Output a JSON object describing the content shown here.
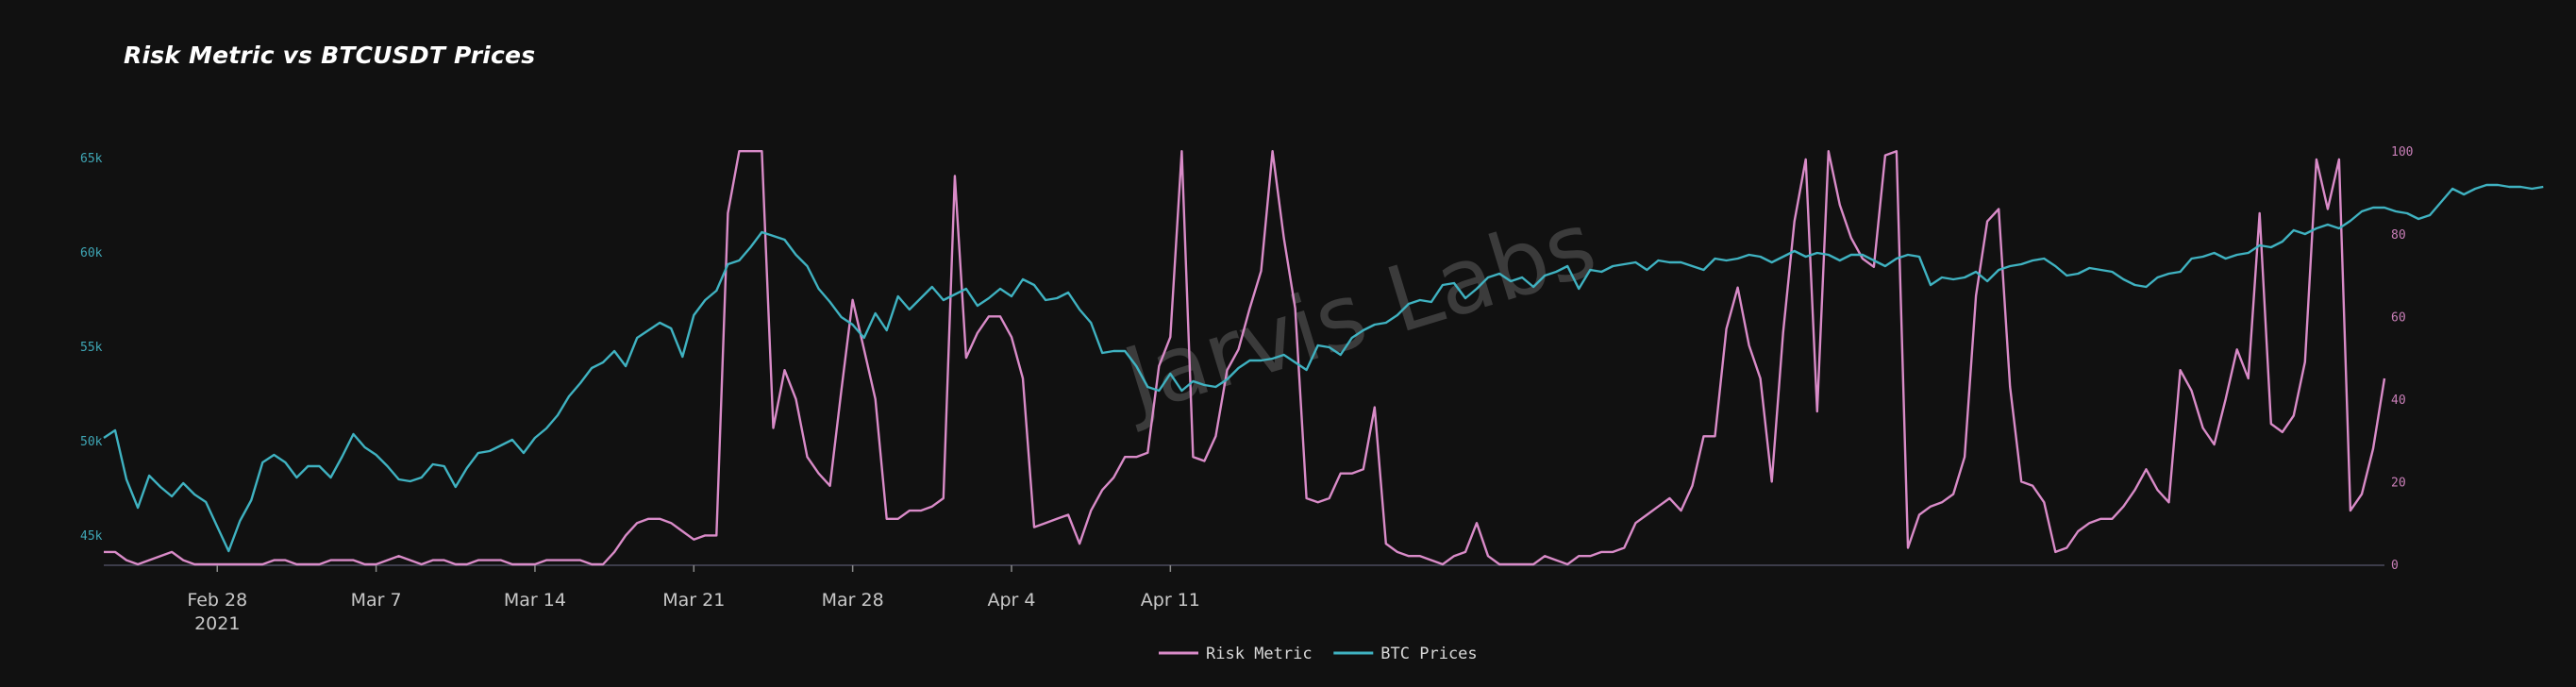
{
  "chart_data": {
    "type": "line",
    "title": "Risk Metric vs BTCUSDT Prices",
    "watermark": "Jarvis Labs",
    "x_start": "2021-02-23",
    "x_ticks": [
      {
        "date": "2021-02-28",
        "label": "Feb 28",
        "sublabel": "2021"
      },
      {
        "date": "2021-03-07",
        "label": "Mar 7",
        "sublabel": ""
      },
      {
        "date": "2021-03-14",
        "label": "Mar 14",
        "sublabel": ""
      },
      {
        "date": "2021-03-21",
        "label": "Mar 21",
        "sublabel": ""
      },
      {
        "date": "2021-03-28",
        "label": "Mar 28",
        "sublabel": ""
      },
      {
        "date": "2021-04-04",
        "label": "Apr 4",
        "sublabel": ""
      },
      {
        "date": "2021-04-11",
        "label": "Apr 11",
        "sublabel": ""
      }
    ],
    "y_left": {
      "ticks": [
        {
          "v": 45000,
          "label": "45k"
        },
        {
          "v": 50000,
          "label": "50k"
        },
        {
          "v": 55000,
          "label": "55k"
        },
        {
          "v": 60000,
          "label": "60k"
        },
        {
          "v": 65000,
          "label": "65k"
        }
      ],
      "range": [
        43500,
        65500
      ]
    },
    "y_right": {
      "ticks": [
        {
          "v": 0,
          "label": "0"
        },
        {
          "v": 20,
          "label": "20"
        },
        {
          "v": 40,
          "label": "40"
        },
        {
          "v": 60,
          "label": "60"
        },
        {
          "v": 80,
          "label": "80"
        },
        {
          "v": 100,
          "label": "100"
        }
      ],
      "range": [
        0,
        100.5
      ]
    },
    "legend_position": "bottom-center",
    "series": [
      {
        "name": "Risk Metric",
        "axis": "right",
        "color": "#d98bc8",
        "values": [
          3,
          3,
          1,
          0,
          1,
          2,
          3,
          1,
          0,
          0,
          0,
          0,
          0,
          0,
          0,
          1,
          1,
          0,
          0,
          0,
          1,
          1,
          1,
          0,
          0,
          1,
          2,
          1,
          0,
          1,
          1,
          0,
          0,
          1,
          1,
          1,
          0,
          0,
          0,
          1,
          1,
          1,
          1,
          0,
          0,
          3,
          7,
          10,
          11,
          11,
          10,
          8,
          6,
          7,
          7,
          85,
          100,
          100,
          100,
          33,
          47,
          40,
          26,
          22,
          19,
          42,
          64,
          52,
          40,
          11,
          11,
          13,
          13,
          14,
          16,
          94,
          50,
          56,
          60,
          60,
          55,
          45,
          9,
          10,
          11,
          12,
          5,
          13,
          18,
          21,
          26,
          26,
          27,
          48,
          55,
          100,
          26,
          25,
          31,
          47,
          52,
          62,
          71,
          100,
          79,
          62,
          16,
          15,
          16,
          22,
          22,
          23,
          38,
          5,
          3,
          2,
          2,
          1,
          0,
          2,
          3,
          10,
          2,
          0,
          0,
          0,
          0,
          2,
          1,
          0,
          2,
          2,
          3,
          3,
          4,
          10,
          12,
          14,
          16,
          13,
          19,
          31,
          31,
          57,
          67,
          53,
          45,
          20,
          56,
          83,
          98,
          37,
          100,
          87,
          79,
          74,
          72,
          99,
          100,
          4,
          12,
          14,
          15,
          17,
          26,
          65,
          83,
          86,
          43,
          20,
          19,
          15,
          3,
          4,
          8,
          10,
          11,
          11,
          14,
          18,
          23,
          18,
          15,
          47,
          42,
          33,
          29,
          40,
          52,
          45,
          85,
          34,
          32,
          36,
          49,
          98,
          86,
          98,
          13,
          17,
          28,
          45
        ]
      },
      {
        "name": "BTC Prices",
        "axis": "left",
        "color": "#3fb2c1",
        "values": [
          50200,
          50600,
          48000,
          46500,
          48200,
          47600,
          47100,
          47800,
          47200,
          46800,
          45500,
          44200,
          45800,
          46900,
          48900,
          49300,
          48900,
          48100,
          48700,
          48700,
          48100,
          49200,
          50400,
          49700,
          49300,
          48700,
          48000,
          47900,
          48100,
          48800,
          48700,
          47600,
          48600,
          49400,
          49500,
          49800,
          50100,
          49400,
          50200,
          50700,
          51400,
          52400,
          53100,
          53900,
          54200,
          54800,
          54000,
          55500,
          55900,
          56300,
          56000,
          54500,
          56700,
          57500,
          58000,
          59400,
          59600,
          60300,
          61100,
          60900,
          60700,
          59900,
          59300,
          58100,
          57400,
          56600,
          56200,
          55500,
          56800,
          55900,
          57700,
          57000,
          57600,
          58200,
          57500,
          57800,
          58100,
          57200,
          57600,
          58100,
          57700,
          58600,
          58300,
          57500,
          57600,
          57900,
          57000,
          56300,
          54700,
          54800,
          54800,
          54000,
          52900,
          52700,
          53600,
          52700,
          53200,
          53000,
          52900,
          53300,
          53900,
          54300,
          54300,
          54400,
          54600,
          54200,
          53800,
          55100,
          55000,
          54600,
          55500,
          55900,
          56200,
          56300,
          56700,
          57300,
          57500,
          57400,
          58300,
          58400,
          57600,
          58100,
          58700,
          58900,
          58500,
          58700,
          58200,
          58800,
          59000,
          59300,
          58100,
          59100,
          59000,
          59300,
          59400,
          59500,
          59100,
          59600,
          59500,
          59500,
          59300,
          59100,
          59700,
          59600,
          59700,
          59900,
          59800,
          59500,
          59800,
          60100,
          59800,
          60000,
          59900,
          59600,
          59900,
          59900,
          59600,
          59300,
          59700,
          59900,
          59800,
          58300,
          58700,
          58600,
          58700,
          59000,
          58500,
          59100,
          59300,
          59400,
          59600,
          59700,
          59300,
          58800,
          58900,
          59200,
          59100,
          59000,
          58600,
          58300,
          58200,
          58700,
          58900,
          59000,
          59700,
          59800,
          60000,
          59700,
          59900,
          60000,
          60400,
          60300,
          60600,
          61200,
          61000,
          61300,
          61500,
          61300,
          61700,
          62200,
          62400,
          62400,
          62200,
          62100,
          61800,
          62000,
          62700,
          63400,
          63100,
          63400,
          63600,
          63600,
          63500,
          63500,
          63400,
          63500
        ]
      }
    ]
  }
}
